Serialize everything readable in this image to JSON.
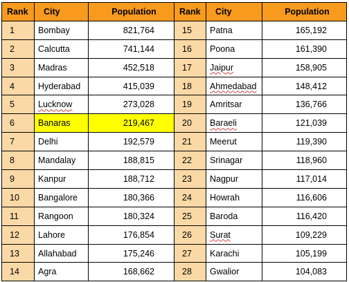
{
  "headers": {
    "rank": "Rank",
    "city": "City",
    "population": "Population"
  },
  "left_rows": [
    {
      "rank": "1",
      "city": "Bombay",
      "population": "821,764"
    },
    {
      "rank": "2",
      "city": "Calcutta",
      "population": "741,144"
    },
    {
      "rank": "3",
      "city": "Madras",
      "population": "452,518"
    },
    {
      "rank": "4",
      "city": "Hyderabad",
      "population": "415,039"
    },
    {
      "rank": "5",
      "city": "Lucknow",
      "population": "273,028"
    },
    {
      "rank": "6",
      "city": "Banaras",
      "population": "219,467"
    },
    {
      "rank": "7",
      "city": "Delhi",
      "population": "192,579"
    },
    {
      "rank": "8",
      "city": "Mandalay",
      "population": "188,815"
    },
    {
      "rank": "9",
      "city": "Kanpur",
      "population": "188,712"
    },
    {
      "rank": "10",
      "city": "Bangalore",
      "population": "180,366"
    },
    {
      "rank": "11",
      "city": "Rangoon",
      "population": "180,324"
    },
    {
      "rank": "12",
      "city": "Lahore",
      "population": "176,854"
    },
    {
      "rank": "13",
      "city": "Allahabad",
      "population": "175,246"
    },
    {
      "rank": "14",
      "city": "Agra",
      "population": "168,662"
    }
  ],
  "right_rows": [
    {
      "rank": "15",
      "city": "Patna",
      "population": "165,192"
    },
    {
      "rank": "16",
      "city": "Poona",
      "population": "161,390"
    },
    {
      "rank": "17",
      "city": "Jaipur",
      "population": "158,905"
    },
    {
      "rank": "18",
      "city": "Ahmedabad",
      "population": "148,412"
    },
    {
      "rank": "19",
      "city": "Amritsar",
      "population": "136,766"
    },
    {
      "rank": "20",
      "city": "Baraeli",
      "population": "121,039"
    },
    {
      "rank": "21",
      "city": "Meerut",
      "population": "119,390"
    },
    {
      "rank": "22",
      "city": "Srinagar",
      "population": "118,960"
    },
    {
      "rank": "23",
      "city": "Nagpur",
      "population": "117,014"
    },
    {
      "rank": "24",
      "city": "Howrah",
      "population": "116,606"
    },
    {
      "rank": "25",
      "city": "Baroda",
      "population": "116,420"
    },
    {
      "rank": "26",
      "city": "Surat",
      "population": "109,229"
    },
    {
      "rank": "27",
      "city": "Karachi",
      "population": "105,199"
    },
    {
      "rank": "28",
      "city": "Gwalior",
      "population": "104,083"
    }
  ],
  "highlighted_row": "Banaras",
  "colors": {
    "header_bg": "#f79a1e",
    "rank_bg": "#fbd9a6",
    "highlight": "#ffff00",
    "border": "#000000"
  }
}
